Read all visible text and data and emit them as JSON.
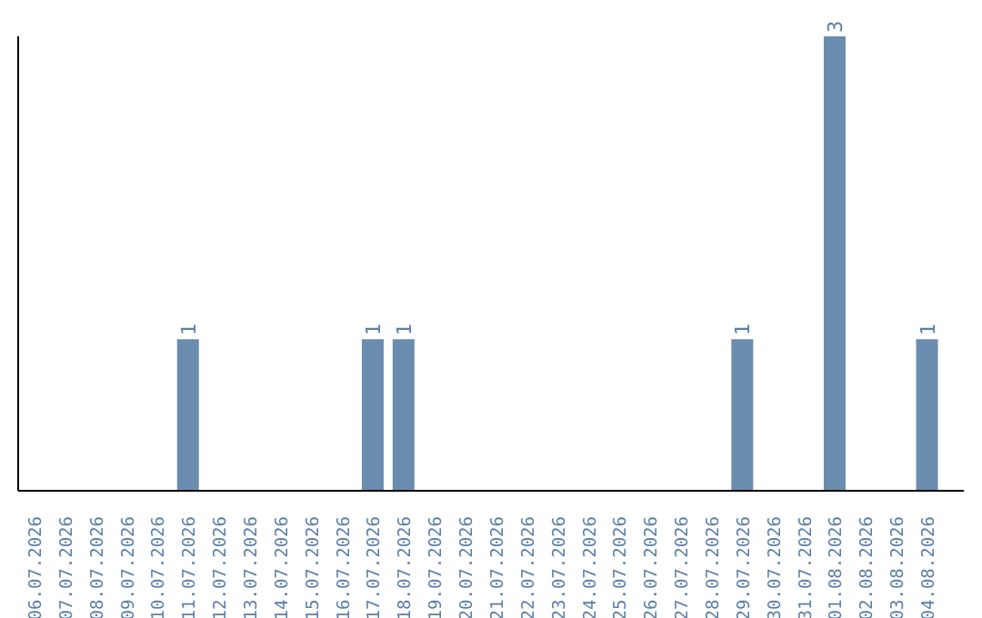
{
  "chart_data": {
    "type": "bar",
    "categories": [
      "06.07.2026",
      "07.07.2026",
      "08.07.2026",
      "09.07.2026",
      "10.07.2026",
      "11.07.2026",
      "12.07.2026",
      "13.07.2026",
      "14.07.2026",
      "15.07.2026",
      "16.07.2026",
      "17.07.2026",
      "18.07.2026",
      "19.07.2026",
      "20.07.2026",
      "21.07.2026",
      "22.07.2026",
      "23.07.2026",
      "24.07.2026",
      "25.07.2026",
      "26.07.2026",
      "27.07.2026",
      "28.07.2026",
      "29.07.2026",
      "30.07.2026",
      "31.07.2026",
      "01.08.2026",
      "02.08.2026",
      "03.08.2026",
      "04.08.2026"
    ],
    "values": [
      0,
      0,
      0,
      0,
      0,
      1,
      0,
      0,
      0,
      0,
      0,
      1,
      1,
      0,
      0,
      0,
      0,
      0,
      0,
      0,
      0,
      0,
      0,
      1,
      0,
      0,
      3,
      0,
      0,
      1
    ],
    "value_labels": [
      null,
      null,
      null,
      null,
      null,
      "1",
      null,
      null,
      null,
      null,
      null,
      "1",
      "1",
      null,
      null,
      null,
      null,
      null,
      null,
      null,
      null,
      null,
      null,
      "1",
      null,
      null,
      "3",
      null,
      null,
      "1"
    ],
    "color": "#6a8caf",
    "grid": false,
    "legend": false
  }
}
